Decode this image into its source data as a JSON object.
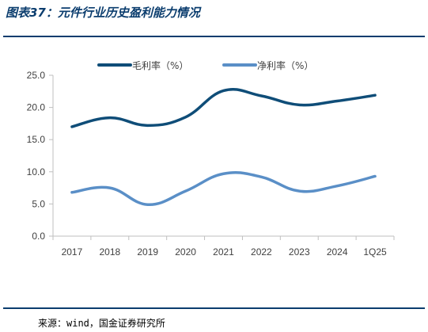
{
  "header": {
    "title": "图表37：元件行业历史盈利能力情况"
  },
  "footer": {
    "source": "来源：wind，国金证券研究所"
  },
  "colors": {
    "accent": "#0b3d6e",
    "series1": "#0f4d78",
    "series2": "#5a8fc7"
  },
  "chart_data": {
    "type": "line",
    "categories": [
      "2017",
      "2018",
      "2019",
      "2020",
      "2021",
      "2022",
      "2023",
      "2024",
      "1Q25"
    ],
    "series": [
      {
        "name": "毛利率（%）",
        "values": [
          17.0,
          18.4,
          17.2,
          18.5,
          22.6,
          21.8,
          20.4,
          21.0,
          21.9
        ]
      },
      {
        "name": "净利率（%）",
        "values": [
          6.8,
          7.5,
          4.9,
          7.0,
          9.7,
          9.2,
          7.0,
          7.8,
          9.3
        ]
      }
    ],
    "y_ticks": [
      "0.0",
      "5.0",
      "10.0",
      "15.0",
      "20.0",
      "25.0"
    ],
    "ylim": [
      0,
      25
    ],
    "grid": false,
    "legend": "top-center"
  }
}
